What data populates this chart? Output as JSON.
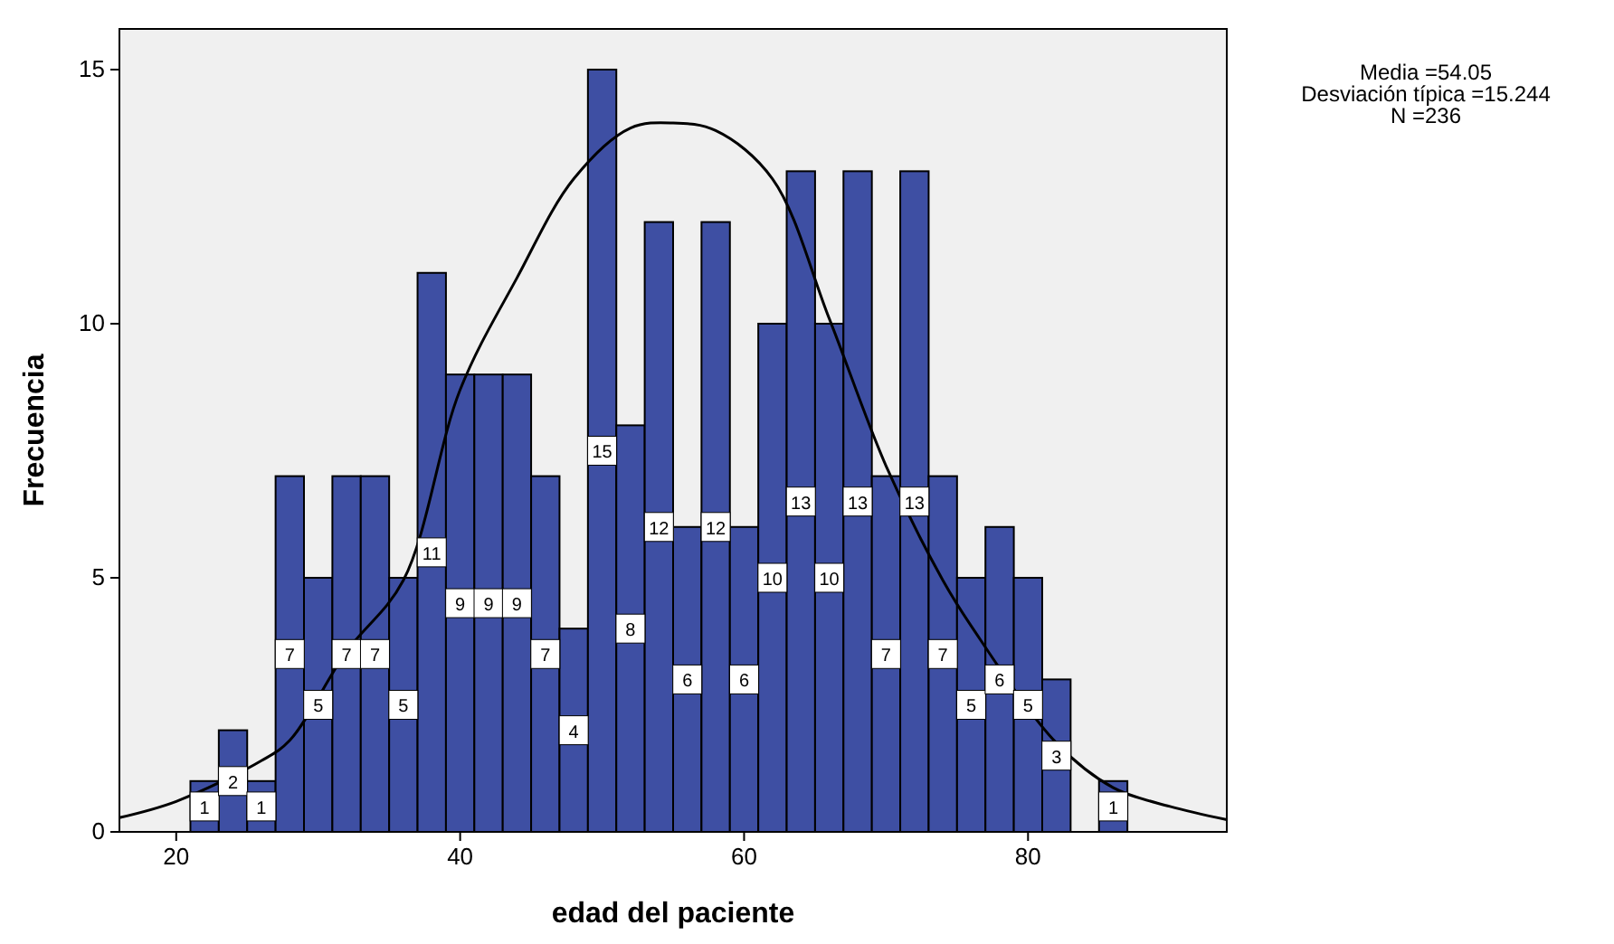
{
  "chart_data": {
    "type": "histogram",
    "xlabel": "edad del paciente",
    "ylabel": "Frecuencia",
    "bins": [
      21,
      23,
      25,
      27,
      29,
      31,
      33,
      35,
      37,
      39,
      41,
      43,
      45,
      47,
      49,
      51,
      53,
      55,
      57,
      59,
      61,
      63,
      65,
      67,
      69,
      71,
      73,
      75,
      77,
      79,
      81,
      83,
      85,
      87
    ],
    "values": [
      1,
      2,
      1,
      7,
      5,
      7,
      7,
      5,
      11,
      9,
      9,
      9,
      7,
      4,
      15,
      8,
      12,
      6,
      12,
      6,
      10,
      13,
      10,
      13,
      7,
      13,
      7,
      5,
      6,
      5,
      3,
      0,
      1
    ],
    "value_labels": [
      "1",
      "2",
      "1",
      "7",
      "5",
      "7",
      "7",
      "5",
      "11",
      "9",
      "9",
      "9",
      "7",
      "4",
      "15",
      "8",
      "12",
      "6",
      "12",
      "6",
      "10",
      "13",
      "10",
      "13",
      "7",
      "13",
      "7",
      "5",
      "6",
      "5",
      "3",
      null,
      "1"
    ],
    "color": "#3e4fa3",
    "series": [
      {
        "type": "line",
        "color": "#000000",
        "x": [
          16,
          20,
          26,
          28,
          32,
          36,
          40,
          44,
          48,
          52,
          55,
          58,
          62,
          66,
          70,
          74,
          76,
          82,
          86,
          90,
          94
        ],
        "values": [
          0.28,
          0.6,
          1.4,
          1.8,
          3.55,
          4.95,
          8.7,
          10.9,
          12.85,
          13.85,
          13.95,
          13.8,
          12.85,
          10.1,
          7.2,
          4.95,
          4.05,
          1.75,
          0.87,
          0.5,
          0.24
        ]
      }
    ],
    "xlim": [
      16,
      94
    ],
    "xticks": [
      20,
      40,
      60,
      80
    ],
    "ylim": [
      0,
      15.8
    ],
    "yticks": [
      0,
      5,
      10,
      15
    ],
    "grid": false,
    "annotations": [
      "Media =54.05",
      "Desviación típica =15.244",
      "N =236"
    ]
  }
}
